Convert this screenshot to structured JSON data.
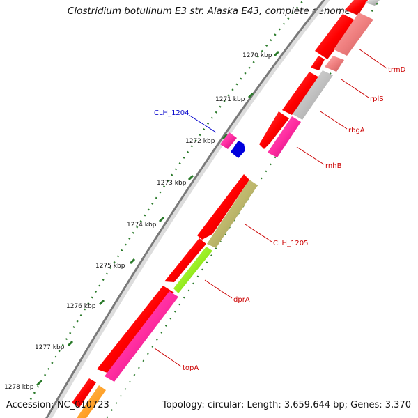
{
  "title": "Clostridium botulinum E3 str. Alaska E43, complete genome",
  "accession": "Accession: NC_010723",
  "summary": "Topology: circular; Length: 3,659,644 bp; Genes: 3,370",
  "ticks": [
    "1270 kbp",
    "1271 kbp",
    "1272 kbp",
    "1273 kbp",
    "1274 kbp",
    "1275 kbp",
    "1276 kbp",
    "1277 kbp",
    "1278 kbp"
  ],
  "labels": [
    {
      "text": "trmD",
      "color": "#cc0000"
    },
    {
      "text": "rplS",
      "color": "#cc0000"
    },
    {
      "text": "rbgA",
      "color": "#cc0000"
    },
    {
      "text": "CLH_1204",
      "color": "#0000cc"
    },
    {
      "text": "rnhB",
      "color": "#cc0000"
    },
    {
      "text": "CLH_1205",
      "color": "#cc0000"
    },
    {
      "text": "dprA",
      "color": "#cc0000"
    },
    {
      "text": "topA",
      "color": "#cc0000"
    }
  ],
  "colors": {
    "cds": "#ff0000",
    "backbone": "#888888",
    "tick": "#2a7a2a"
  }
}
